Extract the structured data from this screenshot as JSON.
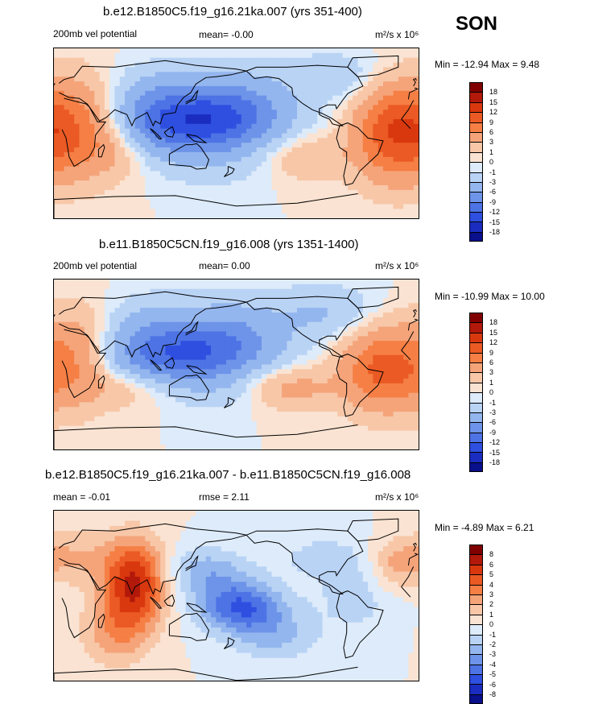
{
  "season": "SON",
  "colors": {
    "scale": [
      "#800000",
      "#B3190A",
      "#D9380F",
      "#EB5A24",
      "#F57F45",
      "#F5A47A",
      "#F7C7A8",
      "#FAE3D2",
      "#DDEBFA",
      "#B9D3F5",
      "#94B6EE",
      "#6D94E8",
      "#4D73E5",
      "#2E4FE0",
      "#1A2DC0",
      "#0A0F8C"
    ]
  },
  "chart_data": [
    {
      "type": "heatmap",
      "title": "b.e12.B1850C5.f19_g16.21ka.007 (yrs 351-400)",
      "left_label": "200mb vel potential",
      "center_label": "mean=  -0.00",
      "units_label": "m²/s x 10⁶",
      "minmax": "Min = -12.94 Max =   9.48",
      "levels": [
        "18",
        "15",
        "12",
        "9",
        "6",
        "3",
        "1",
        "0",
        "-1",
        "-3",
        "-6",
        "-9",
        "-12",
        "-15",
        "-18"
      ],
      "blobs": [
        {
          "lon": 135,
          "lat": 10,
          "value": -12.9,
          "sx": 55,
          "sy": 22
        },
        {
          "lon": 175,
          "lat": 35,
          "value": -5,
          "sx": 40,
          "sy": 25
        },
        {
          "lon": 100,
          "lat": 45,
          "value": -3,
          "sx": 30,
          "sy": 20
        },
        {
          "lon": 280,
          "lat": 60,
          "value": -2.5,
          "sx": 35,
          "sy": 18
        },
        {
          "lon": 155,
          "lat": -35,
          "value": -1.5,
          "sx": 45,
          "sy": 18
        },
        {
          "lon": 15,
          "lat": 5,
          "value": 9.5,
          "sx": 30,
          "sy": 35
        },
        {
          "lon": 330,
          "lat": 0,
          "value": 9,
          "sx": 25,
          "sy": 35
        },
        {
          "lon": 250,
          "lat": -25,
          "value": 3,
          "sx": 30,
          "sy": 18
        },
        {
          "lon": 60,
          "lat": -10,
          "value": 3,
          "sx": 25,
          "sy": 25
        }
      ]
    },
    {
      "type": "heatmap",
      "title": "b.e11.B1850C5CN.f19_g16.008 (yrs 1351-1400)",
      "left_label": "200mb vel potential",
      "center_label": "mean=   0.00",
      "units_label": "m²/s x 10⁶",
      "minmax": "Min = -10.99 Max = 10.00",
      "levels": [
        "18",
        "15",
        "12",
        "9",
        "6",
        "3",
        "1",
        "0",
        "-1",
        "-3",
        "-6",
        "-9",
        "-12",
        "-15",
        "-18"
      ],
      "blobs": [
        {
          "lon": 125,
          "lat": 10,
          "value": -11,
          "sx": 50,
          "sy": 20
        },
        {
          "lon": 175,
          "lat": 35,
          "value": -5,
          "sx": 40,
          "sy": 25
        },
        {
          "lon": 95,
          "lat": 45,
          "value": -3,
          "sx": 30,
          "sy": 20
        },
        {
          "lon": 270,
          "lat": 55,
          "value": -3,
          "sx": 35,
          "sy": 20
        },
        {
          "lon": 160,
          "lat": -30,
          "value": -1.5,
          "sx": 35,
          "sy": 15
        },
        {
          "lon": 20,
          "lat": 5,
          "value": 6,
          "sx": 25,
          "sy": 35
        },
        {
          "lon": 325,
          "lat": -5,
          "value": 10,
          "sx": 28,
          "sy": 30
        },
        {
          "lon": 235,
          "lat": -25,
          "value": 4,
          "sx": 30,
          "sy": 15
        },
        {
          "lon": 70,
          "lat": -25,
          "value": 2,
          "sx": 30,
          "sy": 15
        }
      ]
    },
    {
      "type": "heatmap",
      "title": "b.e12.B1850C5.f19_g16.21ka.007 - b.e11.B1850C5CN.f19_g16.008",
      "left_label": "mean =  -0.01",
      "center_label": "rmse =   2.11",
      "units_label": "m²/s x 10⁶",
      "minmax": "Min =  -4.89 Max =   6.21",
      "levels": [
        "8",
        "6",
        "5",
        "4",
        "3",
        "2",
        "1",
        "0",
        "-1",
        "-2",
        "-3",
        "-4",
        "-5",
        "-6",
        "-8"
      ],
      "blobs": [
        {
          "lon": 80,
          "lat": 20,
          "value": 6.2,
          "sx": 22,
          "sy": 30
        },
        {
          "lon": 60,
          "lat": -30,
          "value": 2.5,
          "sx": 25,
          "sy": 25
        },
        {
          "lon": 15,
          "lat": 45,
          "value": 2,
          "sx": 30,
          "sy": 20
        },
        {
          "lon": 185,
          "lat": -5,
          "value": -4.9,
          "sx": 30,
          "sy": 18
        },
        {
          "lon": 150,
          "lat": 30,
          "value": -2.5,
          "sx": 30,
          "sy": 18
        },
        {
          "lon": 220,
          "lat": -35,
          "value": -2,
          "sx": 30,
          "sy": 18
        },
        {
          "lon": 300,
          "lat": 10,
          "value": -1.5,
          "sx": 30,
          "sy": 30
        },
        {
          "lon": 335,
          "lat": 35,
          "value": 2,
          "sx": 18,
          "sy": 18
        },
        {
          "lon": 260,
          "lat": 45,
          "value": -1.2,
          "sx": 30,
          "sy": 15
        }
      ]
    }
  ]
}
